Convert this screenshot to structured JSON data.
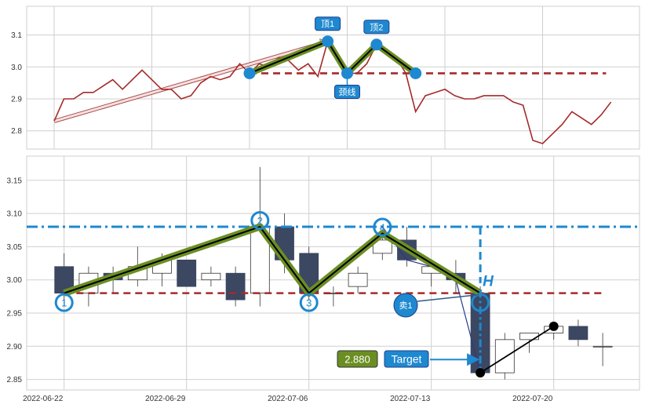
{
  "colors": {
    "line": "#a52a2a",
    "neckline": "#a52a2a",
    "pattern_fill": "#6b8e23",
    "pattern_core": "#000000",
    "marker": "#1e88d0",
    "resistance": "#1e88d0",
    "down_candle": "#3c4761",
    "up_candle": "#ffffff",
    "trend_arrow": "#ffdede",
    "target_value_box": "#6b8e23",
    "target_box": "#1e88d0"
  },
  "chart_data": [
    {
      "type": "line",
      "panel": "top",
      "ylim": [
        2.74,
        3.19
      ],
      "yticks": [
        "2.8",
        "2.9",
        "3.0",
        "3.1"
      ],
      "grid": true,
      "values": [
        2.83,
        2.9,
        2.9,
        2.92,
        2.92,
        2.94,
        2.96,
        2.93,
        2.96,
        2.99,
        2.96,
        2.93,
        2.93,
        2.9,
        2.91,
        2.95,
        2.97,
        2.96,
        2.97,
        3.01,
        2.98,
        3.01,
        3.0,
        3.03,
        3.02,
        2.99,
        3.01,
        2.97,
        3.08,
        3.03,
        2.98,
        2.98,
        3.01,
        3.07,
        3.04,
        3.03,
        2.98,
        2.86,
        2.91,
        2.92,
        2.93,
        2.91,
        2.9,
        2.9,
        2.91,
        2.91,
        2.91,
        2.89,
        2.88,
        2.77,
        2.76,
        2.79,
        2.82,
        2.86,
        2.84,
        2.82,
        2.85,
        2.89
      ],
      "annotations": {
        "points": [
          {
            "i": 20,
            "v": 2.98
          },
          {
            "i": 28,
            "v": 3.08
          },
          {
            "i": 30,
            "v": 2.98
          },
          {
            "i": 33,
            "v": 3.07
          },
          {
            "i": 37,
            "v": 2.98
          }
        ],
        "labels": [
          {
            "text": "顶1",
            "i": 28,
            "v": 3.08,
            "pos": "above"
          },
          {
            "text": "颈线",
            "i": 30,
            "v": 2.98,
            "pos": "below"
          },
          {
            "text": "顶2",
            "i": 33,
            "v": 3.07,
            "pos": "above"
          }
        ],
        "neckline": {
          "v": 2.98,
          "from": 20,
          "to": 56.5
        },
        "trend_arrow": {
          "from": {
            "i": 0,
            "v": 2.83
          },
          "to": {
            "i": 28,
            "v": 3.08
          }
        }
      }
    },
    {
      "type": "candlestick",
      "panel": "bottom",
      "ylim": [
        2.835,
        3.19
      ],
      "yticks": [
        "2.85",
        "2.90",
        "2.95",
        "3.00",
        "3.05",
        "3.10",
        "3.15"
      ],
      "xticks": [
        {
          "i": 0,
          "label": "2022-06-22"
        },
        {
          "i": 5,
          "label": "2022-06-29"
        },
        {
          "i": 10,
          "label": "2022-07-06"
        },
        {
          "i": 15,
          "label": "2022-07-13"
        },
        {
          "i": 20,
          "label": "2022-07-20"
        }
      ],
      "grid": true,
      "ohlc": [
        [
          3.02,
          3.04,
          2.96,
          2.98
        ],
        [
          2.98,
          3.02,
          2.96,
          3.01
        ],
        [
          3.01,
          3.02,
          2.98,
          3.0
        ],
        [
          3.0,
          3.05,
          2.99,
          3.02
        ],
        [
          3.01,
          3.04,
          2.99,
          3.03
        ],
        [
          3.03,
          3.03,
          2.99,
          2.99
        ],
        [
          3.0,
          3.02,
          2.99,
          3.01
        ],
        [
          3.01,
          3.02,
          2.96,
          2.97
        ],
        [
          2.98,
          3.17,
          2.96,
          3.08
        ],
        [
          3.08,
          3.1,
          3.01,
          3.03
        ],
        [
          3.04,
          3.05,
          2.97,
          2.98
        ],
        [
          2.98,
          2.99,
          2.96,
          2.98
        ],
        [
          2.99,
          3.02,
          2.98,
          3.01
        ],
        [
          3.04,
          3.07,
          3.03,
          3.06
        ],
        [
          3.06,
          3.08,
          3.02,
          3.03
        ],
        [
          3.01,
          3.02,
          2.99,
          3.02
        ],
        [
          3.01,
          3.03,
          2.98,
          3.0
        ],
        [
          2.98,
          2.99,
          2.86,
          2.86
        ],
        [
          2.86,
          2.92,
          2.85,
          2.91
        ],
        [
          2.91,
          2.92,
          2.89,
          2.92
        ],
        [
          2.92,
          2.93,
          2.91,
          2.93
        ],
        [
          2.93,
          2.94,
          2.9,
          2.91
        ],
        [
          2.9,
          2.92,
          2.87,
          2.9
        ]
      ],
      "annotations": {
        "resistance": 3.08,
        "neckline": {
          "v": 2.98,
          "from": 0.5,
          "to": 22
        },
        "pattern": [
          {
            "i": 0,
            "v": 2.98,
            "label": "1"
          },
          {
            "i": 8,
            "v": 3.08,
            "label": "2"
          },
          {
            "i": 10,
            "v": 2.98,
            "label": "3"
          },
          {
            "i": 13,
            "v": 3.07,
            "label": "4"
          },
          {
            "i": 17,
            "v": 2.98,
            "label": ""
          }
        ],
        "height_label": "H",
        "sell_label": "卖1",
        "target_value": "2.880",
        "target_label": "Target",
        "target_price": 2.88,
        "projection": [
          {
            "i": 17,
            "v": 2.86
          },
          {
            "i": 20,
            "v": 2.93
          }
        ]
      }
    }
  ]
}
